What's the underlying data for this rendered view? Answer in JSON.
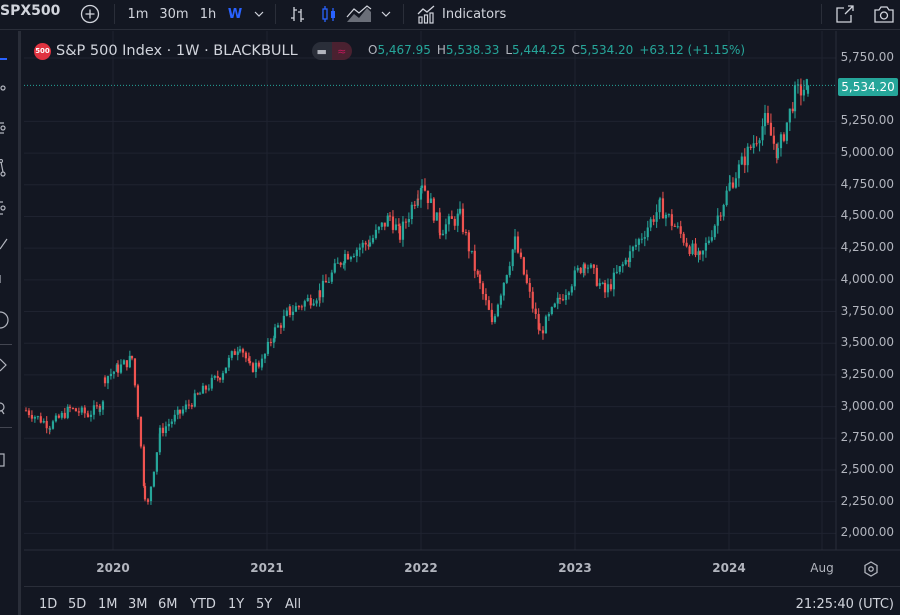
{
  "toolbar": {
    "symbol": "SPX500",
    "intervals": [
      "1m",
      "30m",
      "1h",
      "W"
    ],
    "active_interval": "W",
    "indicators_label": "Indicators"
  },
  "legend": {
    "badge": "500",
    "title": "S&P 500 Index · 1W · BLACKBULL",
    "open_key": "O",
    "open": "5,467.95",
    "high_key": "H",
    "high": "5,538.33",
    "low_key": "L",
    "low": "5,444.25",
    "close_key": "C",
    "close": "5,534.20",
    "change": "+63.12 (+1.15%)"
  },
  "price_tag": "5,534.20",
  "bottom": {
    "ranges": [
      "1D",
      "5D",
      "1M",
      "3M",
      "6M",
      "YTD",
      "1Y",
      "5Y",
      "All"
    ],
    "clock": "21:25:40 (UTC)"
  },
  "colors": {
    "up": "#26a69a",
    "down": "#ef5350",
    "bg": "#131722",
    "grid": "#1f2330",
    "accent": "#2962ff"
  },
  "chart_data": {
    "type": "candlestick",
    "title": "S&P 500 Index · 1W · BLACKBULL",
    "xlabel": "",
    "ylabel": "",
    "x_ticks": [
      "2020",
      "2021",
      "2022",
      "2023",
      "2024",
      "Aug"
    ],
    "y_ticks": [
      "5,750.00",
      "5,250.00",
      "5,000.00",
      "4,750.00",
      "4,500.00",
      "4,250.00",
      "4,000.00",
      "3,750.00",
      "3,500.00",
      "3,250.00",
      "3,000.00",
      "2,750.00",
      "2,500.00",
      "2,250.00",
      "2,000.00"
    ],
    "ylim": [
      1950,
      5800
    ],
    "last_price": 5534.2,
    "series_keypoints": [
      {
        "date": "2019-07",
        "close": 2970
      },
      {
        "date": "2019-08",
        "close": 2850
      },
      {
        "date": "2019-09",
        "close": 2980
      },
      {
        "date": "2019-10",
        "close": 2940
      },
      {
        "date": "2019-11",
        "close": 3000
      },
      {
        "date": "2019-12",
        "close": 3020
      },
      {
        "date": "2019-12-gap",
        "close": 3230
      },
      {
        "date": "2020-01",
        "close": 3300
      },
      {
        "date": "2020-02",
        "close": 3380
      },
      {
        "date": "2020-02-late",
        "close": 2950
      },
      {
        "date": "2020-03",
        "close": 2300
      },
      {
        "date": "2020-03-low",
        "close": 2240
      },
      {
        "date": "2020-04",
        "close": 2800
      },
      {
        "date": "2020-05",
        "close": 2950
      },
      {
        "date": "2020-06",
        "close": 3100
      },
      {
        "date": "2020-07",
        "close": 3250
      },
      {
        "date": "2020-08",
        "close": 3500
      },
      {
        "date": "2020-09",
        "close": 3300
      },
      {
        "date": "2020-10",
        "close": 3350
      },
      {
        "date": "2020-11",
        "close": 3600
      },
      {
        "date": "2020-12",
        "close": 3750
      },
      {
        "date": "2021-02",
        "close": 3900
      },
      {
        "date": "2021-04",
        "close": 4200
      },
      {
        "date": "2021-06",
        "close": 4300
      },
      {
        "date": "2021-08",
        "close": 4500
      },
      {
        "date": "2021-09",
        "close": 4350
      },
      {
        "date": "2021-11",
        "close": 4700
      },
      {
        "date": "2021-12",
        "close": 4780
      },
      {
        "date": "2022-01",
        "close": 4400
      },
      {
        "date": "2022-03",
        "close": 4500
      },
      {
        "date": "2022-05",
        "close": 3950
      },
      {
        "date": "2022-06",
        "close": 3670
      },
      {
        "date": "2022-08",
        "close": 4300
      },
      {
        "date": "2022-10",
        "close": 3580
      },
      {
        "date": "2022-12",
        "close": 3850
      },
      {
        "date": "2023-02",
        "close": 4150
      },
      {
        "date": "2023-03",
        "close": 3900
      },
      {
        "date": "2023-05",
        "close": 4200
      },
      {
        "date": "2023-07",
        "close": 4580
      },
      {
        "date": "2023-10",
        "close": 4150
      },
      {
        "date": "2023-12",
        "close": 4750
      },
      {
        "date": "2024-03",
        "close": 5250
      },
      {
        "date": "2024-04",
        "close": 5000
      },
      {
        "date": "2024-06",
        "close": 5460
      },
      {
        "date": "2024-07",
        "close": 5534.2
      }
    ]
  }
}
